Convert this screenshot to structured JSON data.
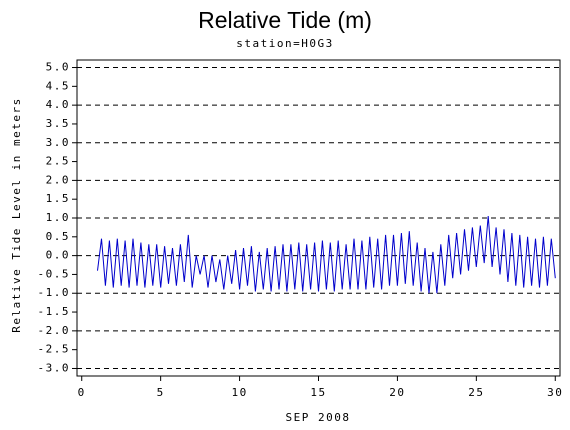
{
  "chart_data": {
    "type": "line",
    "title": "Relative Tide (m)",
    "subtitle": "station=H0G3",
    "x_label": "SEP 2008",
    "y_label": "Relative Tide Level in meters",
    "x": [
      1,
      1.25,
      1.5,
      1.75,
      2,
      2.25,
      2.5,
      2.75,
      3,
      3.25,
      3.5,
      3.75,
      4,
      4.25,
      4.5,
      4.75,
      5,
      5.25,
      5.5,
      5.75,
      6,
      6.25,
      6.5,
      6.75,
      7,
      7.25,
      7.5,
      7.75,
      8,
      8.25,
      8.5,
      8.75,
      9,
      9.25,
      9.5,
      9.75,
      10,
      10.25,
      10.5,
      10.75,
      11,
      11.25,
      11.5,
      11.75,
      12,
      12.25,
      12.5,
      12.75,
      13,
      13.25,
      13.5,
      13.75,
      14,
      14.25,
      14.5,
      14.75,
      15,
      15.25,
      15.5,
      15.75,
      16,
      16.25,
      16.5,
      16.75,
      17,
      17.25,
      17.5,
      17.75,
      18,
      18.25,
      18.5,
      18.75,
      19,
      19.25,
      19.5,
      19.75,
      20,
      20.25,
      20.5,
      20.75,
      21,
      21.25,
      21.5,
      21.75,
      22,
      22.25,
      22.5,
      22.75,
      23,
      23.25,
      23.5,
      23.75,
      24,
      24.25,
      24.5,
      24.75,
      25,
      25.25,
      25.5,
      25.75,
      26,
      26.25,
      26.5,
      26.75,
      27,
      27.25,
      27.5,
      27.75,
      28,
      28.25,
      28.5,
      28.75,
      29,
      29.25,
      29.5,
      29.75,
      30
    ],
    "series": [
      {
        "name": "Relative Tide",
        "color": "#0000cc",
        "values": [
          -0.4,
          0.45,
          -0.8,
          0.4,
          -0.85,
          0.45,
          -0.8,
          0.4,
          -0.85,
          0.45,
          -0.8,
          0.35,
          -0.85,
          0.3,
          -0.8,
          0.3,
          -0.85,
          0.25,
          -0.75,
          0.2,
          -0.8,
          0.3,
          -0.7,
          0.55,
          -0.85,
          0.0,
          -0.5,
          0.0,
          -0.85,
          0.0,
          -0.7,
          -0.1,
          -0.9,
          0.0,
          -0.75,
          0.15,
          -0.9,
          0.2,
          -0.8,
          0.25,
          -0.95,
          0.1,
          -0.9,
          0.2,
          -0.95,
          0.25,
          -0.9,
          0.3,
          -0.95,
          0.3,
          -0.9,
          0.35,
          -0.95,
          0.3,
          -0.9,
          0.35,
          -0.95,
          0.4,
          -0.9,
          0.35,
          -0.95,
          0.4,
          -0.9,
          0.3,
          -0.9,
          0.45,
          -0.9,
          0.4,
          -0.9,
          0.5,
          -0.85,
          0.45,
          -0.9,
          0.55,
          -0.8,
          0.55,
          -0.8,
          0.6,
          -0.75,
          0.65,
          -0.8,
          0.35,
          -0.95,
          0.2,
          -1.0,
          0.1,
          -1.0,
          0.3,
          -0.8,
          0.55,
          -0.6,
          0.6,
          -0.5,
          0.7,
          -0.4,
          0.75,
          -0.3,
          0.8,
          -0.2,
          1.05,
          -0.3,
          0.75,
          -0.5,
          0.7,
          -0.7,
          0.6,
          -0.8,
          0.55,
          -0.85,
          0.5,
          -0.8,
          0.45,
          -0.85,
          0.5,
          -0.8,
          0.45,
          -0.6
        ]
      }
    ],
    "xlim": [
      -0.3,
      30.3
    ],
    "ylim": [
      -3.2,
      5.2
    ],
    "xticks": [
      0,
      5,
      10,
      15,
      20,
      25,
      30
    ],
    "yticks": [
      {
        "value": -3,
        "label": "-3.0"
      },
      {
        "value": -2.5,
        "label": "-2.5"
      },
      {
        "value": -2,
        "label": "-2.0"
      },
      {
        "value": -1.5,
        "label": "-1.5"
      },
      {
        "value": -1,
        "label": "-1.0"
      },
      {
        "value": -0.5,
        "label": "-0.5"
      },
      {
        "value": 0,
        "label": "0.0"
      },
      {
        "value": 0.5,
        "label": "0.5"
      },
      {
        "value": 1,
        "label": "1.0"
      },
      {
        "value": 1.5,
        "label": "1.5"
      },
      {
        "value": 2,
        "label": "2.0"
      },
      {
        "value": 2.5,
        "label": "2.5"
      },
      {
        "value": 3,
        "label": "3.0"
      },
      {
        "value": 3.5,
        "label": "3.5"
      },
      {
        "value": 4,
        "label": "4.0"
      },
      {
        "value": 4.5,
        "label": "4.5"
      },
      {
        "value": 5,
        "label": "5.0"
      }
    ],
    "grid_lines": [
      -3,
      -2,
      -1,
      0,
      1,
      2,
      3,
      4,
      5
    ],
    "grid_style": "dashed"
  }
}
